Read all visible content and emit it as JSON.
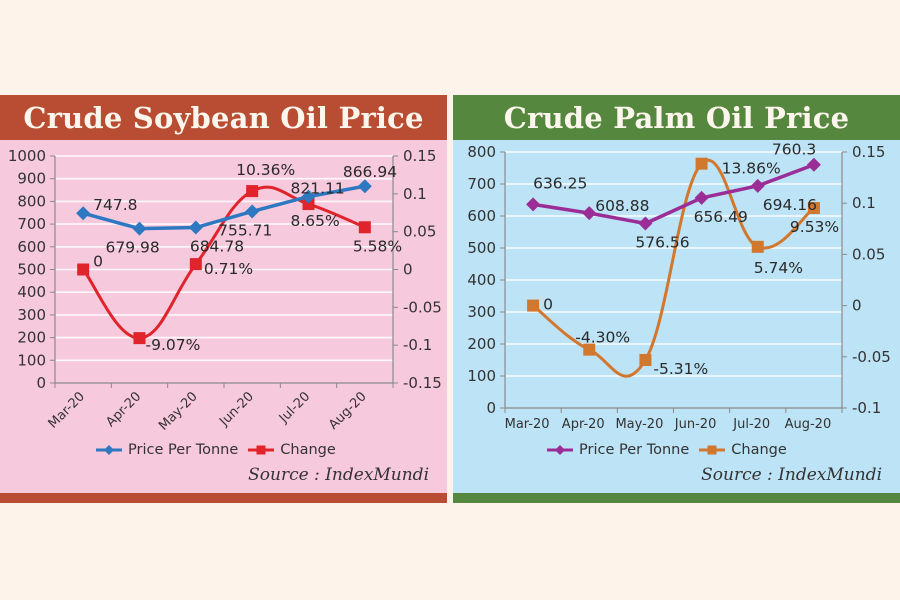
{
  "chart_data": [
    {
      "type": "line",
      "title": "Crude Soybean Oil Price",
      "categories": [
        "Mar-20",
        "Apr-20",
        "May-20",
        "Jun-20",
        "Jul-20",
        "Aug-20"
      ],
      "series": [
        {
          "name": "Price Per Tonne",
          "axis": "left",
          "color": "#2e78c2",
          "marker": "diamond",
          "values": [
            747.8,
            679.98,
            684.78,
            755.71,
            821.11,
            866.94
          ],
          "labels": [
            "747.8",
            "679.98",
            "684.78",
            "755.71",
            "821.11",
            "866.94"
          ]
        },
        {
          "name": "Change",
          "axis": "right",
          "color": "#e0242b",
          "marker": "square",
          "values": [
            0,
            -0.0907,
            0.0071,
            0.1036,
            0.0865,
            0.0558
          ],
          "labels": [
            "0",
            "-9.07%",
            "0.71%",
            "10.36%",
            "8.65%",
            "5.58%"
          ]
        }
      ],
      "ylabel": "",
      "xlabel": "",
      "ylim": [
        0,
        1000
      ],
      "y_ticks": [
        "1000",
        "900",
        "800",
        "700",
        "600",
        "500",
        "400",
        "300",
        "200",
        "100",
        "0"
      ],
      "y2lim": [
        -0.15,
        0.15
      ],
      "y2_ticks": [
        "0.15",
        "0.1",
        "0.05",
        "0",
        "-0.05",
        "-0.1",
        "-0.15"
      ],
      "grid": true,
      "legend_position": "bottom",
      "x_tick_rotation": -45,
      "source": "Source : IndexMundi"
    },
    {
      "type": "line",
      "title": "Crude Palm Oil Price",
      "categories": [
        "Mar-20",
        "Apr-20",
        "May-20",
        "Jun-20",
        "Jul-20",
        "Aug-20"
      ],
      "series": [
        {
          "name": "Price Per Tonne",
          "axis": "left",
          "color": "#9b2d97",
          "marker": "diamond",
          "values": [
            636.25,
            608.88,
            576.56,
            656.49,
            694.16,
            760.3
          ],
          "labels": [
            "636.25",
            "608.88",
            "576.56",
            "656.49",
            "694.16",
            "760.3"
          ]
        },
        {
          "name": "Change",
          "axis": "right",
          "color": "#d2772e",
          "marker": "square",
          "values": [
            0,
            -0.043,
            -0.0531,
            0.1386,
            0.0574,
            0.0953
          ],
          "labels": [
            "0",
            "-4.30%",
            "-5.31%",
            "13.86%",
            "5.74%",
            "9.53%"
          ]
        }
      ],
      "ylabel": "",
      "xlabel": "",
      "ylim": [
        0,
        800
      ],
      "y_ticks": [
        "800",
        "700",
        "600",
        "500",
        "400",
        "300",
        "200",
        "100",
        "0"
      ],
      "y2lim": [
        -0.1,
        0.15
      ],
      "y2_ticks": [
        "0.15",
        "0.1",
        "0.05",
        "0",
        "-0.05",
        "-0.1"
      ],
      "grid": true,
      "legend_position": "bottom",
      "x_tick_rotation": 0,
      "source": "Source : IndexMundi"
    }
  ],
  "panels": {
    "left": {
      "title": "Crude Soybean Oil Price",
      "legend": {
        "price": "Price Per Tonne",
        "change": "Change"
      },
      "source": "Source : IndexMundi",
      "colors": {
        "header": "#b94d33",
        "background": "#f7c9dc",
        "price": "#2e78c2",
        "change": "#e0242b"
      }
    },
    "right": {
      "title": "Crude Palm Oil Price",
      "legend": {
        "price": "Price Per Tonne",
        "change": "Change"
      },
      "source": "Source : IndexMundi",
      "colors": {
        "header": "#56873e",
        "background": "#bde3f6",
        "price": "#9b2d97",
        "change": "#d2772e"
      }
    }
  }
}
